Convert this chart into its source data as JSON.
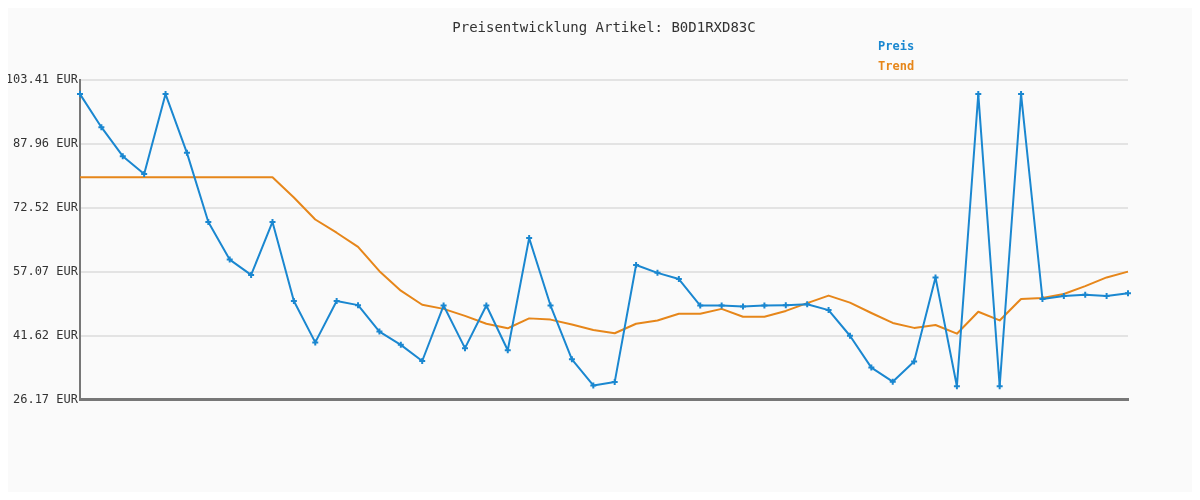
{
  "chart_data": {
    "type": "line",
    "title": "Preisentwicklung Artikel: B0D1RXD83C",
    "categories": [
      null,
      null,
      null,
      null,
      null,
      null,
      null,
      null,
      null,
      null,
      null,
      null,
      null,
      null,
      null,
      null,
      null,
      null,
      null,
      null,
      null,
      null,
      null,
      null,
      null,
      null,
      null,
      null,
      null,
      null,
      null,
      null,
      null,
      null,
      null,
      null,
      null,
      null,
      null,
      null,
      null,
      null,
      null,
      null,
      null,
      null,
      null,
      null,
      null,
      null
    ],
    "series": [
      {
        "name": "Preis",
        "color": "#1a87d0",
        "marker": "cross",
        "values": [
          100,
          92,
          85,
          80.7,
          100,
          85.8,
          69.1,
          60,
          56.3,
          69.1,
          50,
          40,
          50,
          49,
          42.6,
          39.4,
          35.5,
          48.9,
          38.6,
          48.9,
          38.1,
          65.2,
          48.9,
          35.9,
          29.6,
          30.4,
          58.7,
          56.8,
          55.3,
          48.9,
          48.9,
          48.7,
          48.9,
          49,
          49.2,
          47.8,
          41.6,
          33.9,
          30.5,
          35.4,
          55.7,
          29.4,
          100,
          29.4,
          100,
          50.5,
          51.2,
          51.5,
          51.2,
          51.9
        ]
      },
      {
        "name": "Trend",
        "color": "#e6861a",
        "marker": "none",
        "values": [
          79.9,
          79.9,
          79.9,
          79.9,
          79.9,
          79.9,
          79.9,
          79.9,
          79.9,
          79.9,
          75,
          69.7,
          66.5,
          63.1,
          57.2,
          52.5,
          49.1,
          48.1,
          46.4,
          44.5,
          43.4,
          45.8,
          45.5,
          44.3,
          43,
          42.2,
          44.5,
          45.3,
          46.9,
          46.9,
          48.1,
          46.2,
          46.2,
          47.6,
          49.5,
          51.3,
          49.6,
          47.1,
          44.7,
          43.5,
          44.2,
          42.1,
          47.4,
          45.3,
          50.5,
          50.7,
          51.7,
          53.6,
          55.7,
          57.1
        ]
      }
    ],
    "ylim": [
      26.17,
      103.41
    ],
    "yticks": [
      {
        "value": 26.17,
        "label": "26.17 EUR"
      },
      {
        "value": 41.62,
        "label": "41.62 EUR"
      },
      {
        "value": 57.07,
        "label": "57.07 EUR"
      },
      {
        "value": 72.52,
        "label": "72.52 EUR"
      },
      {
        "value": 87.96,
        "label": "87.96 EUR"
      },
      {
        "value": 103.41,
        "label": "103.41 EUR"
      }
    ],
    "grid": "y",
    "legend": "top right",
    "line_style": "solid"
  }
}
